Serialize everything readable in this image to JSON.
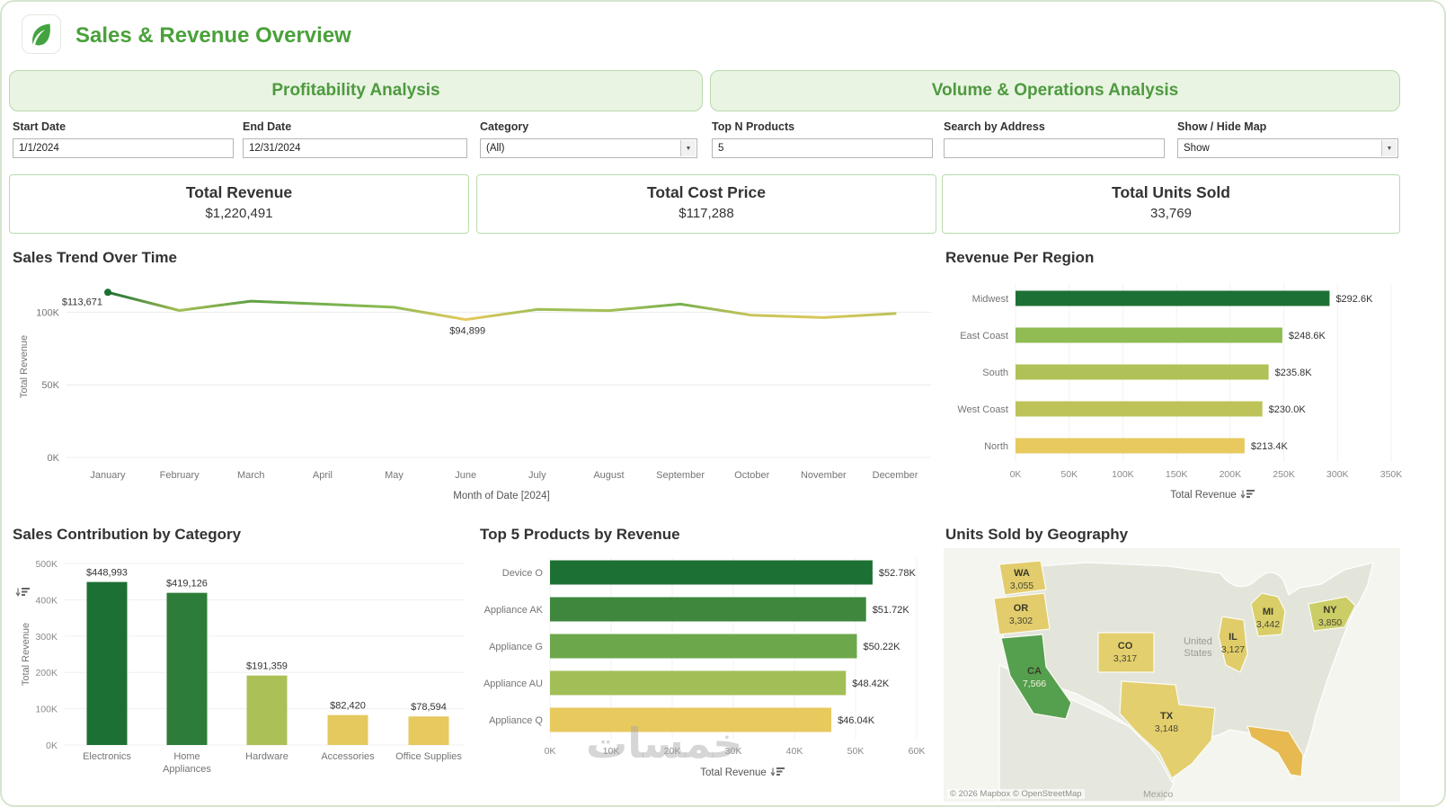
{
  "app": {
    "title": "Sales & Revenue Overview"
  },
  "tabs": [
    {
      "label": "Profitability Analysis"
    },
    {
      "label": "Volume & Operations Analysis"
    }
  ],
  "filters": {
    "start_date": {
      "label": "Start Date",
      "value": "1/1/2024"
    },
    "end_date": {
      "label": "End Date",
      "value": "12/31/2024"
    },
    "category": {
      "label": "Category",
      "value": "(All)"
    },
    "top_n": {
      "label": "Top N Products",
      "value": "5"
    },
    "search": {
      "label": "Search by Address",
      "value": ""
    },
    "map_toggle": {
      "label": "Show / Hide Map",
      "value": "Show"
    }
  },
  "kpis": [
    {
      "title": "Total Revenue",
      "value": "$1,220,491"
    },
    {
      "title": "Total Cost Price",
      "value": "$117,288"
    },
    {
      "title": "Total Units Sold",
      "value": "33,769"
    }
  ],
  "sections": {
    "sales_trend_title": "Sales Trend Over Time",
    "region_title": "Revenue Per Region",
    "category_title": "Sales Contribution by Category",
    "top5_title": "Top 5 Products by Revenue",
    "geo_title": "Units Sold by Geography"
  },
  "chart_data": [
    {
      "id": "sales_trend",
      "type": "line",
      "title": "Sales Trend Over Time",
      "x": [
        "January",
        "February",
        "March",
        "April",
        "May",
        "June",
        "July",
        "August",
        "September",
        "October",
        "November",
        "December"
      ],
      "values": [
        113671,
        101200,
        107600,
        105600,
        103400,
        94899,
        101900,
        101100,
        105600,
        97900,
        96300,
        99100
      ],
      "ylabel": "Total Revenue",
      "xlabel": "Month of Date [2024]",
      "ylim": [
        0,
        125000
      ],
      "yticks": [
        0,
        50000,
        100000
      ],
      "annotations": [
        {
          "index": 0,
          "text": "$113,671"
        },
        {
          "index": 5,
          "text": "$94,899"
        }
      ]
    },
    {
      "id": "revenue_region",
      "type": "bar",
      "orientation": "horizontal",
      "title": "Revenue Per Region",
      "categories": [
        "Midwest",
        "East Coast",
        "South",
        "West Coast",
        "North"
      ],
      "values": [
        292600,
        248600,
        235800,
        230000,
        213400
      ],
      "value_labels": [
        "$292.6K",
        "$248.6K",
        "$235.8K",
        "$230.0K",
        "$213.4K"
      ],
      "xlabel": "Total Revenue",
      "xlim": [
        0,
        350000
      ],
      "xticks": [
        0,
        50000,
        100000,
        150000,
        200000,
        250000,
        300000,
        350000
      ]
    },
    {
      "id": "category_sales",
      "type": "bar",
      "orientation": "vertical",
      "title": "Sales Contribution by Category",
      "categories": [
        "Electronics",
        "Home\nAppliances",
        "Hardware",
        "Accessories",
        "Office Supplies"
      ],
      "values": [
        448993,
        419126,
        191359,
        82420,
        78594
      ],
      "value_labels": [
        "$448,993",
        "$419,126",
        "$191,359",
        "$82,420",
        "$78,594"
      ],
      "ylabel": "Total Revenue",
      "ylim": [
        0,
        500000
      ],
      "yticks": [
        0,
        100000,
        200000,
        300000,
        400000,
        500000
      ]
    },
    {
      "id": "top_products",
      "type": "bar",
      "orientation": "horizontal",
      "title": "Top 5 Products by Revenue",
      "categories": [
        "Device O",
        "Appliance AK",
        "Appliance G",
        "Appliance AU",
        "Appliance Q"
      ],
      "values": [
        52780,
        51720,
        50220,
        48420,
        46040
      ],
      "value_labels": [
        "$52.78K",
        "$51.72K",
        "$50.22K",
        "$48.42K",
        "$46.04K"
      ],
      "xlabel": "Total Revenue",
      "xlim": [
        0,
        60000
      ],
      "xticks": [
        0,
        10000,
        20000,
        30000,
        40000,
        50000,
        60000
      ]
    }
  ],
  "map": {
    "states": [
      {
        "code": "WA",
        "units": "3,055",
        "fill": "#e2cc6c"
      },
      {
        "code": "OR",
        "units": "3,302",
        "fill": "#e2cc6c"
      },
      {
        "code": "CA",
        "units": "7,566",
        "fill": "#55a04f",
        "units_color": "#f6f2dc"
      },
      {
        "code": "CO",
        "units": "3,317",
        "fill": "#e4cf6e"
      },
      {
        "code": "IL",
        "units": "3,127",
        "fill": "#e0cd6a"
      },
      {
        "code": "MI",
        "units": "3,442",
        "fill": "#d9ce68"
      },
      {
        "code": "NY",
        "units": "3,850",
        "fill": "#cbcd66"
      },
      {
        "code": "TX",
        "units": "3,148",
        "fill": "#e4cf6e"
      },
      {
        "code": "FL",
        "units": "",
        "fill": "#e6ba50"
      }
    ],
    "country_label": "United States",
    "mexico_label": "Mexico",
    "attribution": "© 2026 Mapbox © OpenStreetMap"
  },
  "watermark": "خمسات",
  "theme": {
    "accent": "#4aa13a",
    "scale_low": "#e7c95e",
    "scale_mid": "#85ba52",
    "scale_high": "#1d7034",
    "tab_bg": "#e9f4e3",
    "card_border": "#b7dcab",
    "land": "#e3e5db",
    "water": "#f4f5ef"
  }
}
